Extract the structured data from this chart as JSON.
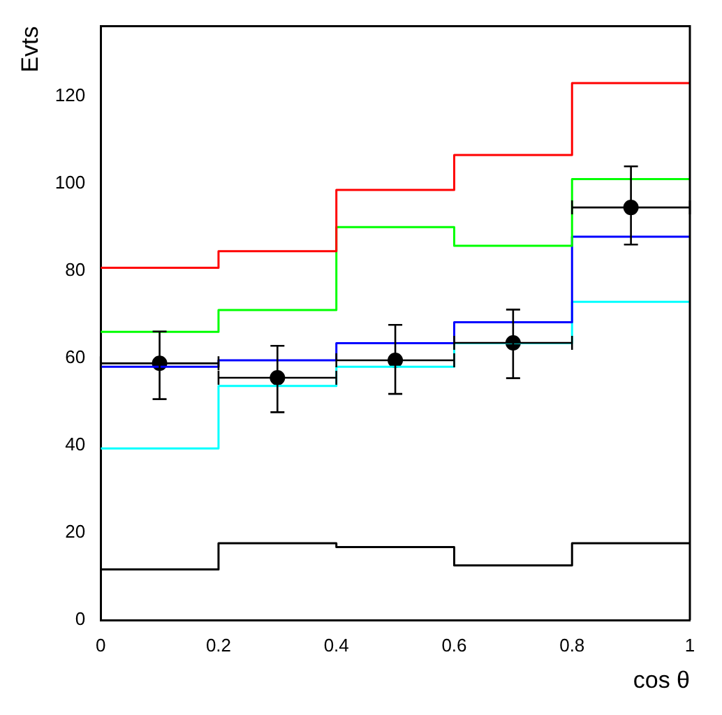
{
  "chart_data": {
    "type": "histogram",
    "xlabel": "cos θ",
    "ylabel": "Evts",
    "bins": [
      0,
      0.2,
      0.4,
      0.6,
      0.8,
      1
    ],
    "xlim": [
      0,
      1
    ],
    "ylim": [
      0,
      136
    ],
    "xticks": [
      0,
      0.2,
      0.4,
      0.6,
      0.8,
      1
    ],
    "yticks": [
      0,
      20,
      40,
      60,
      80,
      100,
      120
    ],
    "grid": false,
    "legend": false,
    "series": [
      {
        "color": "#ff0000",
        "values": [
          80.7,
          84.5,
          98.5,
          106.5,
          123
        ]
      },
      {
        "color": "#00ff00",
        "values": [
          66,
          71,
          90,
          85.7,
          101
        ]
      },
      {
        "color": "#0000ff",
        "values": [
          58,
          59.5,
          63.4,
          68.2,
          87.8
        ]
      },
      {
        "color": "#00ffff",
        "values": [
          39.3,
          53.6,
          58,
          63.4,
          72.9
        ]
      },
      {
        "color": "#000000",
        "values": [
          11.6,
          17.6,
          16.7,
          12.5,
          17.6
        ]
      },
      {
        "type": "scatter",
        "color": "#000000",
        "marker": "circle",
        "x": [
          0.1,
          0.3,
          0.5,
          0.7,
          0.9
        ],
        "values": [
          58.8,
          55.5,
          59.5,
          63.5,
          94.5
        ],
        "errors": [
          [
            50.6,
            66.1
          ],
          [
            47.6,
            62.8
          ],
          [
            51.8,
            67.6
          ],
          [
            55.4,
            71.1
          ],
          [
            86,
            103.9
          ]
        ],
        "xerrors": [
          0.1,
          0.1,
          0.1,
          0.1,
          0.1
        ]
      }
    ]
  }
}
